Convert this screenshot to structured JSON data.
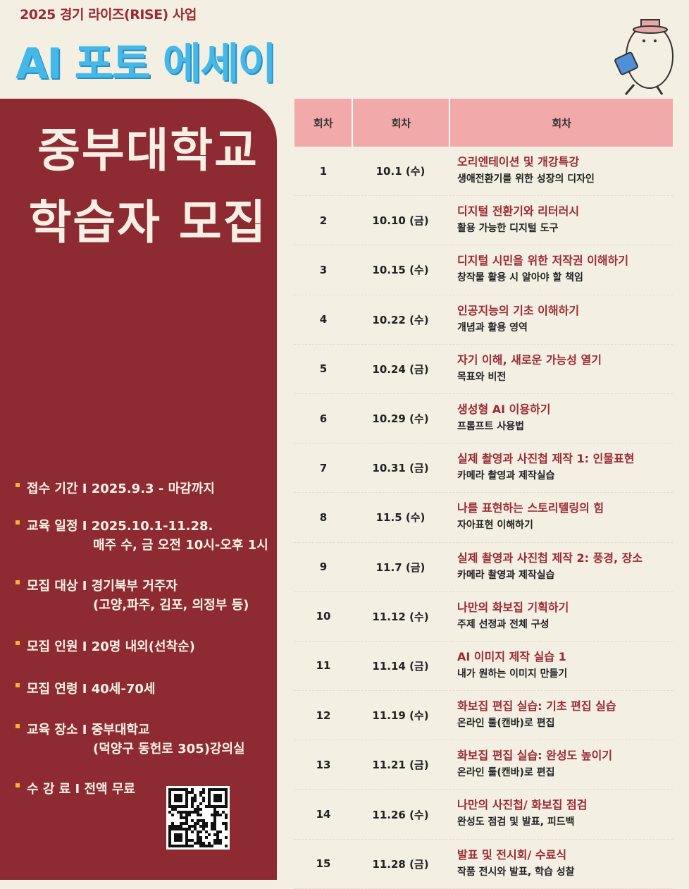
{
  "header": {
    "kicker": "2025 경기 라이즈(RISE) 사업",
    "title": "AI 포토 에세이"
  },
  "banner": {
    "line1": "중부대학교",
    "line2": "학습자 모집"
  },
  "info": [
    {
      "lines": [
        "접수 기간 I 2025.9.3 - 마감까지"
      ]
    },
    {
      "lines": [
        "교육 일정 I 2025.10.1-11.28.",
        "매주 수, 금 오전 10시-오후 1시"
      ]
    },
    {
      "lines": [
        "모집 대상 I 경기북부 거주자",
        "(고양,파주, 김포, 의정부 등)"
      ]
    },
    {
      "lines": [
        "모집 인원 I 20명 내외(선착순)"
      ]
    },
    {
      "lines": [
        "모집 연령 I 40세-70세"
      ]
    },
    {
      "lines": [
        "교육 장소 I 중부대학교",
        "(덕양구 동헌로 305)강의실"
      ]
    },
    {
      "lines": [
        "수  강  료 I 전액 무료"
      ]
    }
  ],
  "table": {
    "columns": [
      "회차",
      "회차",
      "회차"
    ],
    "rows": [
      [
        "1",
        "10.1 (수)",
        "오리엔테이션 및 개강특강",
        "생애전환기를 위한 성장의 디자인"
      ],
      [
        "2",
        "10.10 (금)",
        "디지털 전환기와 리터러시",
        "활용 가능한 디지털 도구"
      ],
      [
        "3",
        "10.15 (수)",
        "디지털 시민을 위한 저작권 이해하기",
        "창작물 활용 시 알아야 할 책임"
      ],
      [
        "4",
        "10.22 (수)",
        "인공지능의 기초 이해하기",
        "개념과 활용 영역"
      ],
      [
        "5",
        "10.24 (금)",
        "자기 이해, 새로운 가능성 열기",
        "목표와 비전"
      ],
      [
        "6",
        "10.29 (수)",
        "생성형 AI 이용하기",
        " 프롬프트 사용법"
      ],
      [
        "7",
        "10.31 (금)",
        "실제 촬영과 사진첩 제작 1: 인물표현",
        "카메라 촬영과 제작실습"
      ],
      [
        "8",
        "11.5 (수)",
        "나를 표현하는 스토리텔링의 힘",
        "자아표현 이해하기"
      ],
      [
        "9",
        "11.7 (금)",
        "실제 촬영과 사진첩 제작 2: 풍경, 장소",
        "카메라 촬영과 제작실습"
      ],
      [
        "10",
        "11.12 (수)",
        "나만의 화보집 기획하기",
        "주제 선정과 전체 구성"
      ],
      [
        "11",
        "11.14 (금)",
        "AI 이미지 제작 실습 1",
        "내가 원하는 이미지 만들기"
      ],
      [
        "12",
        "11.19 (수)",
        "화보집 편집 실습: 기초 편집 실습",
        "온라인 툴(캔바)로 편집"
      ],
      [
        "13",
        "11.21 (금)",
        "화보집 편집 실습: 완성도 높이기",
        "온라인 툴(캔바)로 편집"
      ],
      [
        "14",
        "11.26 (수)",
        "나만의 사진첩/ 화보집 점검",
        "완성도 점검 및 발표, 피드백"
      ],
      [
        "15",
        "11.28 (금)",
        "발표 및 전시회/ 수료식",
        "작품 전시와 발표, 학습 성찰"
      ]
    ]
  }
}
